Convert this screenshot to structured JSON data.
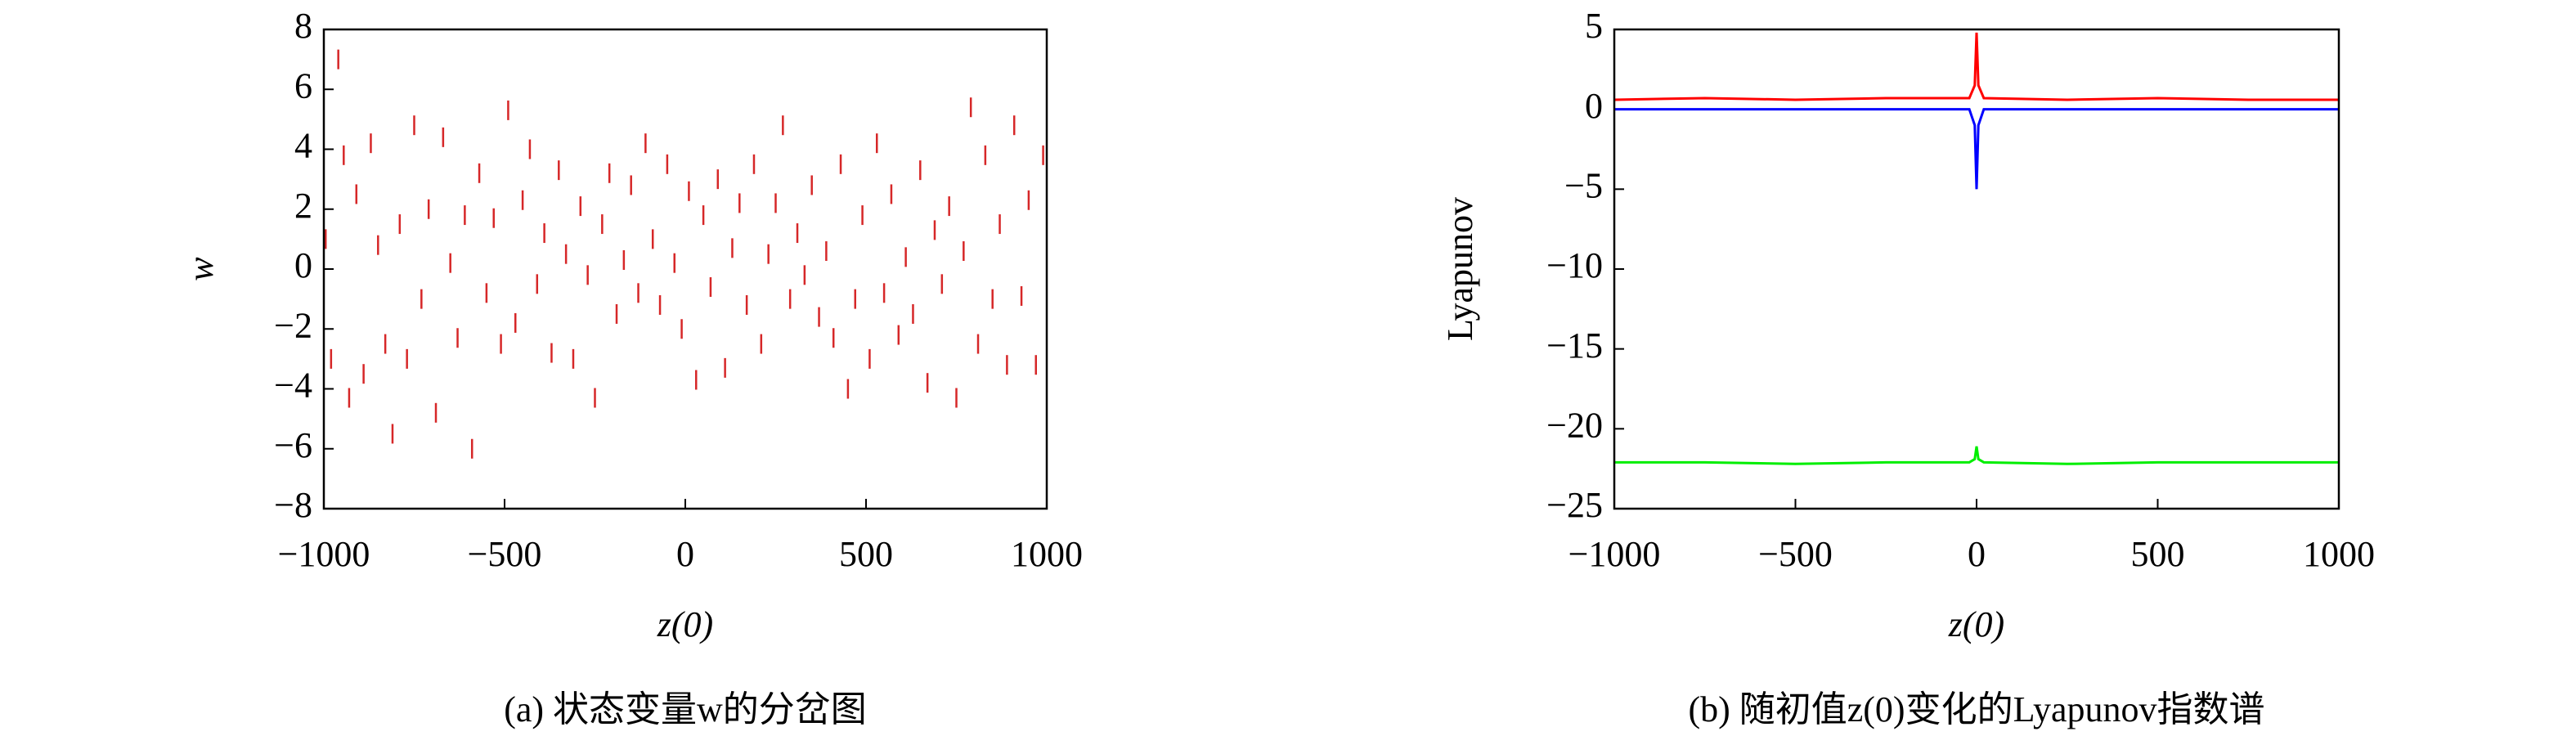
{
  "chart_data": [
    {
      "type": "scatter",
      "marker": "vline",
      "color": "#d62728",
      "xlabel": "z(0)",
      "ylabel": "w",
      "caption": "(a) 状态变量w的分岔图",
      "xlim": [
        -1000,
        1000
      ],
      "ylim": [
        -8,
        8
      ],
      "xticks": [
        {
          "value": -1000,
          "label": "−1000"
        },
        {
          "value": -500,
          "label": "−500"
        },
        0,
        500,
        1000
      ],
      "yticks": [
        {
          "value": -8,
          "label": "−8"
        },
        {
          "value": -6,
          "label": "−6"
        },
        {
          "value": -4,
          "label": "−4"
        },
        {
          "value": -2,
          "label": "−2"
        },
        0,
        2,
        4,
        6,
        8
      ],
      "x": [
        -995,
        -980,
        -960,
        -945,
        -930,
        -910,
        -890,
        -870,
        -850,
        -830,
        -810,
        -790,
        -770,
        -750,
        -730,
        -710,
        -690,
        -670,
        -650,
        -630,
        -610,
        -590,
        -570,
        -550,
        -530,
        -510,
        -490,
        -470,
        -450,
        -430,
        -410,
        -390,
        -370,
        -350,
        -330,
        -310,
        -290,
        -270,
        -250,
        -230,
        -210,
        -190,
        -170,
        -150,
        -130,
        -110,
        -90,
        -70,
        -50,
        -30,
        -10,
        10,
        30,
        50,
        70,
        90,
        110,
        130,
        150,
        170,
        190,
        210,
        230,
        250,
        270,
        290,
        310,
        330,
        350,
        370,
        390,
        410,
        430,
        450,
        470,
        490,
        510,
        530,
        550,
        570,
        590,
        610,
        630,
        650,
        670,
        690,
        710,
        730,
        750,
        770,
        790,
        810,
        830,
        850,
        870,
        890,
        910,
        930,
        950,
        970,
        990
      ],
      "values": [
        1,
        -3,
        7,
        3.8,
        -4.3,
        2.5,
        -3.5,
        4.2,
        0.8,
        -2.5,
        -5.5,
        1.5,
        -3,
        4.8,
        -1,
        2,
        -4.8,
        4.4,
        0.2,
        -2.3,
        1.8,
        -6,
        3.2,
        -0.8,
        1.7,
        -2.5,
        5.3,
        -1.8,
        2.3,
        4,
        -0.5,
        1.2,
        -2.8,
        3.3,
        0.5,
        -3,
        2.1,
        -0.2,
        -4.3,
        1.5,
        3.2,
        -1.5,
        0.3,
        2.8,
        -0.8,
        4.2,
        1,
        -1.2,
        3.5,
        0.2,
        -2,
        2.6,
        -3.7,
        1.8,
        -0.6,
        3,
        -3.3,
        0.7,
        2.2,
        -1.2,
        3.5,
        -2.5,
        0.5,
        2.2,
        4.8,
        -1,
        1.2,
        -0.2,
        2.8,
        -1.6,
        0.6,
        -2.3,
        3.5,
        -4,
        -1,
        1.8,
        -3,
        4.2,
        -0.8,
        2.5,
        -2.2,
        0.4,
        -1.5,
        3.3,
        -3.8,
        1.3,
        -0.5,
        2.1,
        -4.3,
        0.6,
        5.4,
        -2.5,
        3.8,
        -1,
        1.5,
        -3.2,
        4.8,
        -0.9,
        2.3,
        -3.2,
        3.8
      ]
    },
    {
      "type": "line",
      "xlabel": "z(0)",
      "ylabel": "Lyapunov",
      "caption": "(b) 随初值z(0)变化的Lyapunov指数谱",
      "xlim": [
        -1000,
        1000
      ],
      "ylim": [
        -25,
        5
      ],
      "xticks": [
        {
          "value": -1000,
          "label": "−1000"
        },
        {
          "value": -500,
          "label": "−500"
        },
        0,
        500,
        1000
      ],
      "yticks": [
        {
          "value": -25,
          "label": "−25"
        },
        {
          "value": -20,
          "label": "−20"
        },
        {
          "value": -15,
          "label": "−15"
        },
        {
          "value": -10,
          "label": "−10"
        },
        {
          "value": -5,
          "label": "−5"
        },
        0,
        5
      ],
      "x": [
        -1000,
        -750,
        -500,
        -250,
        -20,
        -5,
        0,
        5,
        20,
        250,
        500,
        750,
        1000
      ],
      "series": [
        {
          "color": "#ff0000",
          "values": [
            0.6,
            0.7,
            0.6,
            0.7,
            0.7,
            1.5,
            4.8,
            1.5,
            0.7,
            0.6,
            0.7,
            0.6,
            0.6
          ]
        },
        {
          "color": "#0000ff",
          "values": [
            0,
            0,
            0,
            0,
            0,
            -1,
            -5,
            -1,
            0,
            0,
            0,
            0,
            0
          ]
        },
        {
          "color": "#00ee00",
          "values": [
            -22.1,
            -22.1,
            -22.2,
            -22.1,
            -22.1,
            -21.9,
            -21.1,
            -21.9,
            -22.1,
            -22.2,
            -22.1,
            -22.1,
            -22.1
          ]
        }
      ]
    }
  ]
}
